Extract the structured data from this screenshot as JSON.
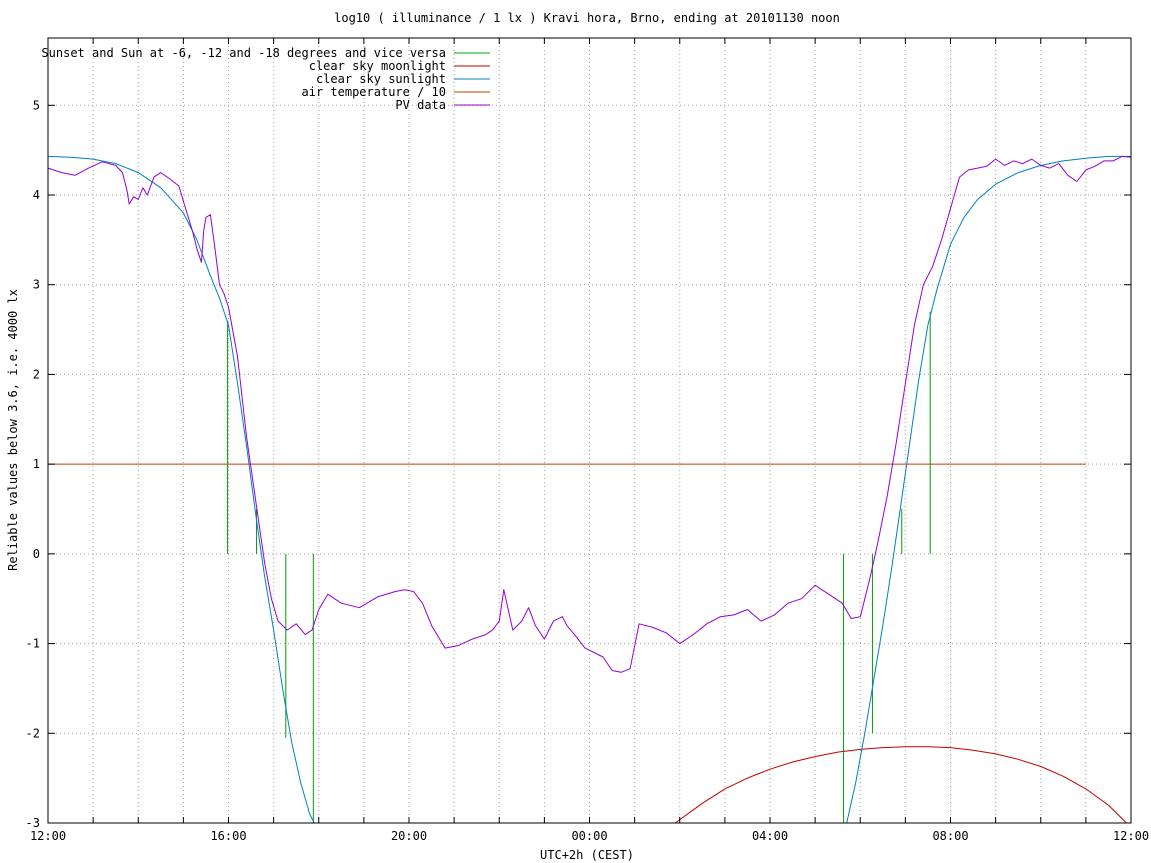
{
  "chart_data": {
    "type": "line",
    "title": "log10 ( illuminance / 1 lx ) Kravi hora, Brno, ending at 20101130 noon",
    "xlabel": "UTC+2h (CEST)",
    "ylabel": "Reliable values below 3.6, i.e. 4000 lx",
    "xlim": [
      0,
      24
    ],
    "ylim": [
      -3,
      5.75
    ],
    "x_ticks": [
      {
        "v": 0,
        "label": "12:00"
      },
      {
        "v": 4,
        "label": "16:00"
      },
      {
        "v": 8,
        "label": "20:00"
      },
      {
        "v": 12,
        "label": "00:00"
      },
      {
        "v": 16,
        "label": "04:00"
      },
      {
        "v": 20,
        "label": "08:00"
      },
      {
        "v": 24,
        "label": "12:00"
      }
    ],
    "x_minor_step": 1,
    "y_ticks": [
      {
        "v": -3,
        "label": "-3"
      },
      {
        "v": -2,
        "label": "-2"
      },
      {
        "v": -1,
        "label": "-1"
      },
      {
        "v": 0,
        "label": "0"
      },
      {
        "v": 1,
        "label": "1"
      },
      {
        "v": 2,
        "label": "2"
      },
      {
        "v": 3,
        "label": "3"
      },
      {
        "v": 4,
        "label": "4"
      },
      {
        "v": 5,
        "label": "5"
      }
    ],
    "grid": true,
    "legend_position": "top-left",
    "series": [
      {
        "name": "Sunset and Sun at -6, -12 and -18 degrees and vice versa",
        "kind": "vlines",
        "color": "#00a000",
        "segments": [
          {
            "x": 3.98,
            "y0": 0,
            "y1": 2.6
          },
          {
            "x": 4.62,
            "y0": 0,
            "y1": 0.5
          },
          {
            "x": 5.27,
            "y0": 0,
            "y1": -2.05
          },
          {
            "x": 5.88,
            "y0": 0,
            "y1": -3
          },
          {
            "x": 17.63,
            "y0": 0,
            "y1": -3
          },
          {
            "x": 18.27,
            "y0": 0,
            "y1": -2.0
          },
          {
            "x": 18.92,
            "y0": 0,
            "y1": 0.5
          },
          {
            "x": 19.55,
            "y0": 0,
            "y1": 2.7
          }
        ]
      },
      {
        "name": "clear sky moonlight",
        "kind": "line",
        "color": "#c00000",
        "x": [
          13.9,
          14.5,
          15.0,
          15.5,
          16.0,
          16.5,
          17.0,
          17.5,
          18.0,
          18.5,
          19.0,
          19.5,
          20.0,
          20.5,
          21.0,
          21.5,
          22.0,
          22.5,
          23.0,
          23.5,
          23.9
        ],
        "y": [
          -3.0,
          -2.78,
          -2.62,
          -2.5,
          -2.4,
          -2.32,
          -2.26,
          -2.21,
          -2.18,
          -2.16,
          -2.15,
          -2.15,
          -2.16,
          -2.19,
          -2.23,
          -2.29,
          -2.37,
          -2.48,
          -2.62,
          -2.8,
          -3.0
        ]
      },
      {
        "name": "clear sky sunlight",
        "kind": "line",
        "color": "#0080c0",
        "x": [
          0,
          0.5,
          1.0,
          1.5,
          2.0,
          2.5,
          3.0,
          3.3,
          3.6,
          3.8,
          4.0,
          4.2,
          4.4,
          4.6,
          4.8,
          5.0,
          5.2,
          5.4,
          5.6,
          5.8,
          5.9,
          17.7,
          17.9,
          18.1,
          18.3,
          18.5,
          18.7,
          18.9,
          19.1,
          19.3,
          19.5,
          19.7,
          20.0,
          20.3,
          20.6,
          21.0,
          21.5,
          22.0,
          22.5,
          23.0,
          23.5,
          24.0
        ],
        "y": [
          4.43,
          4.42,
          4.4,
          4.35,
          4.25,
          4.08,
          3.8,
          3.5,
          3.1,
          2.85,
          2.55,
          1.9,
          1.2,
          0.45,
          -0.25,
          -0.85,
          -1.5,
          -2.1,
          -2.55,
          -2.9,
          -3.0,
          -3.0,
          -2.55,
          -2.0,
          -1.4,
          -0.8,
          -0.15,
          0.55,
          1.25,
          1.95,
          2.55,
          2.95,
          3.45,
          3.75,
          3.95,
          4.12,
          4.25,
          4.33,
          4.38,
          4.41,
          4.43,
          4.43
        ]
      },
      {
        "name": "air temperature / 10",
        "kind": "line",
        "color": "#c04000",
        "x": [
          0,
          23.0
        ],
        "y": [
          1.0,
          1.0
        ]
      },
      {
        "name": "PV data",
        "kind": "line",
        "color": "#9400d3",
        "x": [
          0,
          0.3,
          0.6,
          0.9,
          1.2,
          1.5,
          1.65,
          1.75,
          1.8,
          1.9,
          2.0,
          2.1,
          2.2,
          2.35,
          2.5,
          2.7,
          2.9,
          3.05,
          3.2,
          3.3,
          3.4,
          3.45,
          3.5,
          3.6,
          3.7,
          3.8,
          3.9,
          4.0,
          4.2,
          4.4,
          4.6,
          4.8,
          4.95,
          5.1,
          5.3,
          5.5,
          5.7,
          5.85,
          6.0,
          6.2,
          6.5,
          6.9,
          7.3,
          7.7,
          7.9,
          8.1,
          8.3,
          8.5,
          8.8,
          9.1,
          9.4,
          9.7,
          9.85,
          10.0,
          10.1,
          10.3,
          10.5,
          10.65,
          10.8,
          11.0,
          11.2,
          11.4,
          11.5,
          11.7,
          11.9,
          12.1,
          12.3,
          12.5,
          12.7,
          12.9,
          13.1,
          13.4,
          13.7,
          14.0,
          14.3,
          14.6,
          14.9,
          15.2,
          15.5,
          15.8,
          16.1,
          16.4,
          16.7,
          17.0,
          17.3,
          17.6,
          17.8,
          18.0,
          18.2,
          18.4,
          18.6,
          18.8,
          19.0,
          19.2,
          19.4,
          19.6,
          19.8,
          20.0,
          20.2,
          20.4,
          20.6,
          20.8,
          21.0,
          21.2,
          21.4,
          21.6,
          21.8,
          22.0,
          22.2,
          22.4,
          22.6,
          22.8,
          23.0,
          23.2,
          23.4,
          23.6,
          23.8,
          24.0
        ],
        "y": [
          4.3,
          4.25,
          4.22,
          4.3,
          4.37,
          4.33,
          4.25,
          4.05,
          3.9,
          3.98,
          3.95,
          4.08,
          4.0,
          4.2,
          4.25,
          4.18,
          4.1,
          3.85,
          3.6,
          3.4,
          3.25,
          3.6,
          3.75,
          3.78,
          3.4,
          3.0,
          2.9,
          2.75,
          2.2,
          1.3,
          0.6,
          -0.1,
          -0.5,
          -0.75,
          -0.85,
          -0.78,
          -0.9,
          -0.85,
          -0.62,
          -0.45,
          -0.55,
          -0.6,
          -0.48,
          -0.42,
          -0.4,
          -0.42,
          -0.55,
          -0.8,
          -1.05,
          -1.02,
          -0.95,
          -0.9,
          -0.85,
          -0.75,
          -0.4,
          -0.85,
          -0.75,
          -0.6,
          -0.8,
          -0.95,
          -0.75,
          -0.7,
          -0.8,
          -0.92,
          -1.05,
          -1.1,
          -1.15,
          -1.3,
          -1.32,
          -1.28,
          -0.78,
          -0.82,
          -0.88,
          -1.0,
          -0.9,
          -0.78,
          -0.7,
          -0.68,
          -0.62,
          -0.75,
          -0.68,
          -0.55,
          -0.5,
          -0.35,
          -0.45,
          -0.55,
          -0.72,
          -0.7,
          -0.3,
          0.15,
          0.65,
          1.25,
          1.9,
          2.55,
          3.0,
          3.2,
          3.5,
          3.85,
          4.2,
          4.28,
          4.3,
          4.32,
          4.4,
          4.33,
          4.38,
          4.35,
          4.4,
          4.33,
          4.3,
          4.35,
          4.22,
          4.15,
          4.28,
          4.32,
          4.38,
          4.38,
          4.43,
          4.42
        ]
      }
    ]
  }
}
